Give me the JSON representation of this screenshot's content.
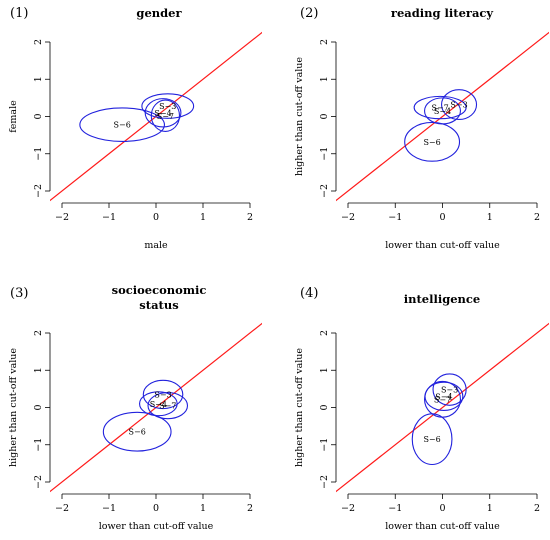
{
  "chart_data": [
    {
      "type": "scatter",
      "number": "(1)",
      "title": [
        "gender"
      ],
      "xlabel": "male",
      "ylabel": "female",
      "xlim": [
        -2,
        2
      ],
      "ylim": [
        -2,
        2
      ],
      "ticks": [
        -2,
        -1,
        0,
        1,
        2
      ],
      "reference_line": "y = x",
      "ellipses": [
        {
          "label": "S−6",
          "cx": -0.72,
          "cy": -0.22,
          "rx": 0.9,
          "ry": 0.45
        },
        {
          "label": "S−3",
          "cx": 0.25,
          "cy": 0.28,
          "rx": 0.55,
          "ry": 0.33
        },
        {
          "label": "S−4",
          "cx": 0.15,
          "cy": 0.1,
          "rx": 0.38,
          "ry": 0.38
        },
        {
          "label": "S−7",
          "cx": 0.2,
          "cy": 0.02,
          "rx": 0.3,
          "ry": 0.42
        }
      ]
    },
    {
      "type": "scatter",
      "number": "(2)",
      "title": [
        "reading literacy"
      ],
      "xlabel": "lower than cut-off value",
      "ylabel": "higher than cut-off value",
      "xlim": [
        -2,
        2
      ],
      "ylim": [
        -2,
        2
      ],
      "ticks": [
        -2,
        -1,
        0,
        1,
        2
      ],
      "reference_line": "y = x",
      "ellipses": [
        {
          "label": "S−6",
          "cx": -0.22,
          "cy": -0.68,
          "rx": 0.58,
          "ry": 0.52
        },
        {
          "label": "S−7",
          "cx": -0.05,
          "cy": 0.24,
          "rx": 0.55,
          "ry": 0.3
        },
        {
          "label": "S−4",
          "cx": 0.0,
          "cy": 0.15,
          "rx": 0.38,
          "ry": 0.35
        },
        {
          "label": "S−3",
          "cx": 0.35,
          "cy": 0.32,
          "rx": 0.37,
          "ry": 0.4
        }
      ]
    },
    {
      "type": "scatter",
      "number": "(3)",
      "title": [
        "socioeconomic",
        "status"
      ],
      "xlabel": "lower than cut-off value",
      "ylabel": "higher than cut-off value",
      "xlim": [
        -2,
        2
      ],
      "ylim": [
        -2,
        2
      ],
      "ticks": [
        -2,
        -1,
        0,
        1,
        2
      ],
      "reference_line": "y = x",
      "ellipses": [
        {
          "label": "S−6",
          "cx": -0.4,
          "cy": -0.65,
          "rx": 0.72,
          "ry": 0.52
        },
        {
          "label": "S−3",
          "cx": 0.15,
          "cy": 0.35,
          "rx": 0.42,
          "ry": 0.38
        },
        {
          "label": "S−4",
          "cx": 0.05,
          "cy": 0.1,
          "rx": 0.4,
          "ry": 0.32
        },
        {
          "label": "S−7",
          "cx": 0.25,
          "cy": 0.05,
          "rx": 0.42,
          "ry": 0.35
        }
      ]
    },
    {
      "type": "scatter",
      "number": "(4)",
      "title": [
        "intelligence"
      ],
      "xlabel": "lower than cut-off value",
      "ylabel": "higher than cut-off value",
      "xlim": [
        -2,
        2
      ],
      "ylim": [
        -2,
        2
      ],
      "ticks": [
        -2,
        -1,
        0,
        1,
        2
      ],
      "reference_line": "y = x",
      "ellipses": [
        {
          "label": "S−6",
          "cx": -0.22,
          "cy": -0.85,
          "rx": 0.42,
          "ry": 0.68
        },
        {
          "label": "S−3",
          "cx": 0.15,
          "cy": 0.48,
          "rx": 0.35,
          "ry": 0.42
        },
        {
          "label": "S−7",
          "cx": 0.0,
          "cy": 0.22,
          "rx": 0.38,
          "ry": 0.48
        },
        {
          "label": "S−4",
          "cx": 0.03,
          "cy": 0.3,
          "rx": 0.4,
          "ry": 0.38
        }
      ]
    }
  ],
  "colors": {
    "reference_line": "#ff1a1a",
    "ellipse": "#2222dd"
  }
}
